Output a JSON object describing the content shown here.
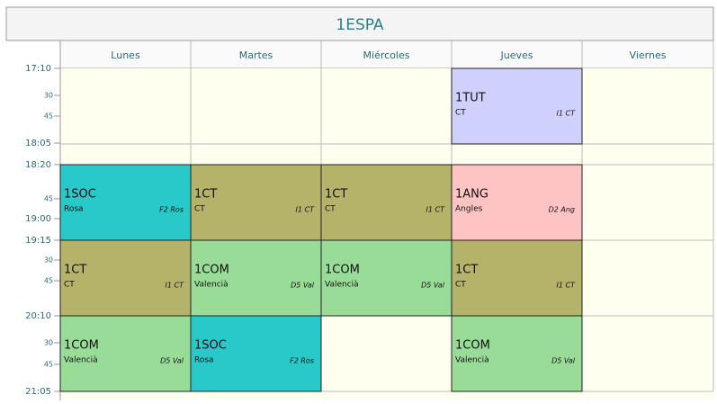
{
  "title": "1ESPA",
  "days": [
    "Lunes",
    "Martes",
    "Miércoles",
    "Jueves",
    "Viernes"
  ],
  "times": [
    "17:10",
    "30",
    "45",
    "18:05",
    "18:20",
    "45",
    "19:00",
    "19:15",
    "30",
    "45",
    "20:10",
    "30",
    "45",
    "21:05"
  ],
  "rows": [
    [
      null,
      null,
      null,
      {
        "subject": "1TUT",
        "teacher": "CT",
        "room": "I1 CT",
        "color": "#d0d0fc"
      },
      null
    ],
    [
      {
        "subject": "1SOC",
        "teacher": "Rosa",
        "room": "F2 Ros",
        "color": "#29c9c9"
      },
      {
        "subject": "1CT",
        "teacher": "CT",
        "room": "I1 CT",
        "color": "#b5b26a"
      },
      {
        "subject": "1CT",
        "teacher": "CT",
        "room": "I1 CT",
        "color": "#b5b26a"
      },
      {
        "subject": "1ANG",
        "teacher": "Angles",
        "room": "D2 Ang",
        "color": "#fec4c4"
      },
      null
    ],
    [
      {
        "subject": "1CT",
        "teacher": "CT",
        "room": "I1 CT",
        "color": "#b5b26a"
      },
      {
        "subject": "1COM",
        "teacher": "Valencià",
        "room": "D5 Val",
        "color": "#98dc98"
      },
      {
        "subject": "1COM",
        "teacher": "Valencià",
        "room": "D5 Val",
        "color": "#98dc98"
      },
      {
        "subject": "1CT",
        "teacher": "CT",
        "room": "I1 CT",
        "color": "#b5b26a"
      },
      null
    ],
    [
      {
        "subject": "1COM",
        "teacher": "Valencià",
        "room": "D5 Val",
        "color": "#98dc98"
      },
      {
        "subject": "1SOC",
        "teacher": "Rosa",
        "room": "F2 Ros",
        "color": "#29c9c9"
      },
      null,
      {
        "subject": "1COM",
        "teacher": "Valencià",
        "room": "D5 Val",
        "color": "#98dc98"
      },
      null
    ]
  ]
}
